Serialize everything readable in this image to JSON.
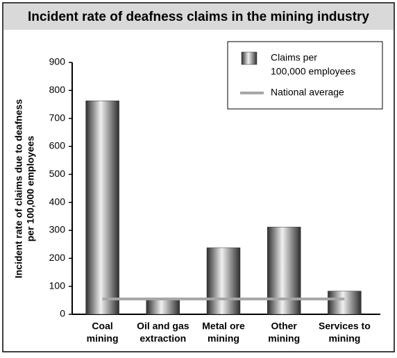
{
  "chart_data": {
    "type": "bar",
    "title": "Incident rate of deafness claims in the mining industry",
    "ylabel": [
      "Incident rate of claims due to deafness",
      "per 100,000 employees"
    ],
    "categories": [
      [
        "Coal",
        "mining"
      ],
      [
        "Oil and gas",
        "extraction"
      ],
      [
        "Metal ore",
        "mining"
      ],
      [
        "Other",
        "mining"
      ],
      [
        "Services to",
        "mining"
      ]
    ],
    "series": [
      {
        "name": [
          "Claims per",
          "100,000 employees"
        ],
        "type": "bar",
        "color": "#555555",
        "values": [
          763,
          55,
          238,
          312,
          83
        ]
      },
      {
        "name": [
          "National average"
        ],
        "type": "line",
        "color": "#a6a6a6",
        "values": [
          55,
          55,
          55,
          55,
          55
        ]
      }
    ],
    "ylim": [
      0,
      900
    ],
    "yticks": [
      0,
      100,
      200,
      300,
      400,
      500,
      600,
      700,
      800,
      900
    ],
    "grid": false,
    "legend": "upper right"
  }
}
